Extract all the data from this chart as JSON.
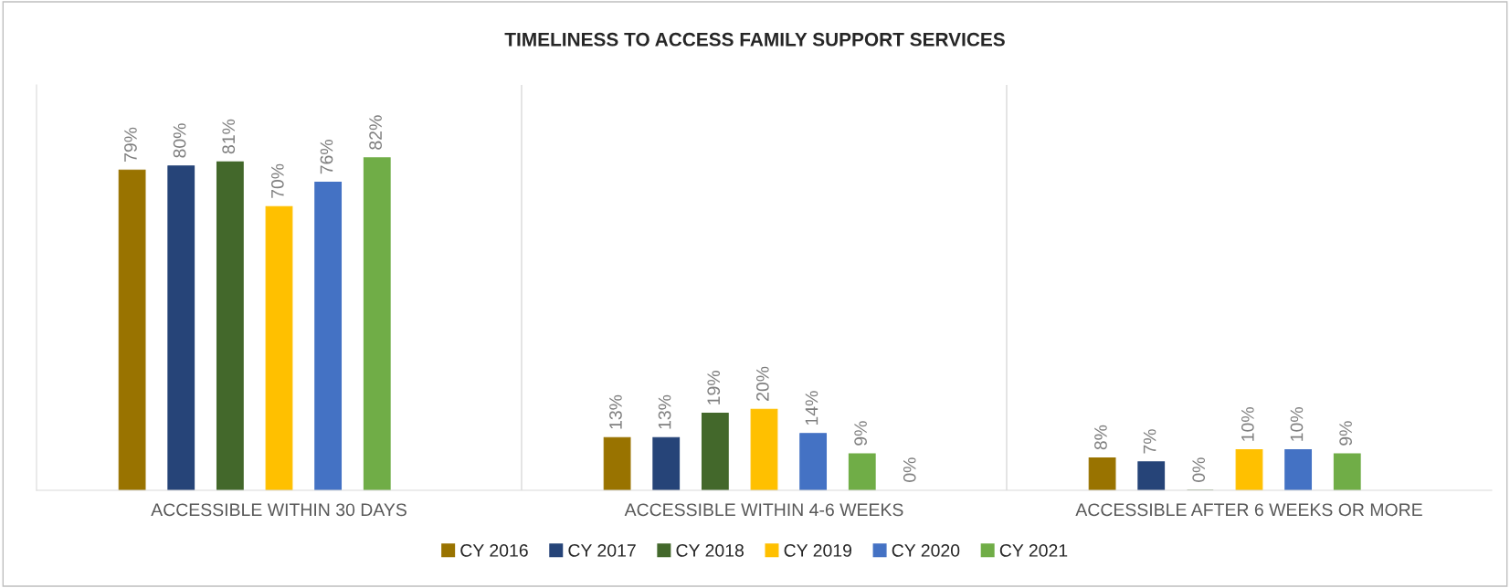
{
  "chart_data": {
    "type": "bar",
    "title": "TIMELINESS TO ACCESS FAMILY SUPPORT SERVICES",
    "categories": [
      "ACCESSIBLE WITHIN 30 DAYS",
      "ACCESSIBLE WITHIN 4-6 WEEKS",
      "ACCESSIBLE AFTER 6 WEEKS OR MORE"
    ],
    "series": [
      {
        "name": "CY 2016",
        "color": "#997300",
        "values": [
          79,
          13,
          8
        ],
        "value_labels": [
          "79%",
          "13%",
          "8%"
        ]
      },
      {
        "name": "CY 2017",
        "color": "#264478",
        "values": [
          80,
          13,
          7
        ],
        "value_labels": [
          "80%",
          "13%",
          "7%"
        ]
      },
      {
        "name": "CY 2018",
        "color": "#43682b",
        "values": [
          81,
          19,
          0
        ],
        "value_labels": [
          "81%",
          "19%",
          "0%"
        ]
      },
      {
        "name": "CY 2019",
        "color": "#ffc000",
        "values": [
          70,
          20,
          10
        ],
        "value_labels": [
          "70%",
          "20%",
          "10%"
        ]
      },
      {
        "name": "CY 2020",
        "color": "#4472c4",
        "values": [
          76,
          14,
          10
        ],
        "value_labels": [
          "76%",
          "14%",
          "10%"
        ]
      },
      {
        "name": "CY 2021",
        "color": "#70ad47",
        "values": [
          82,
          9,
          9
        ],
        "value_labels": [
          "82%",
          "9%",
          "9%"
        ]
      },
      {
        "values": [
          null,
          0,
          null
        ],
        "value_labels": [
          null,
          "0%",
          null
        ]
      }
    ],
    "ylim": [
      0,
      100
    ],
    "tick_labels": "x",
    "grid": false,
    "legend": "bottom"
  }
}
